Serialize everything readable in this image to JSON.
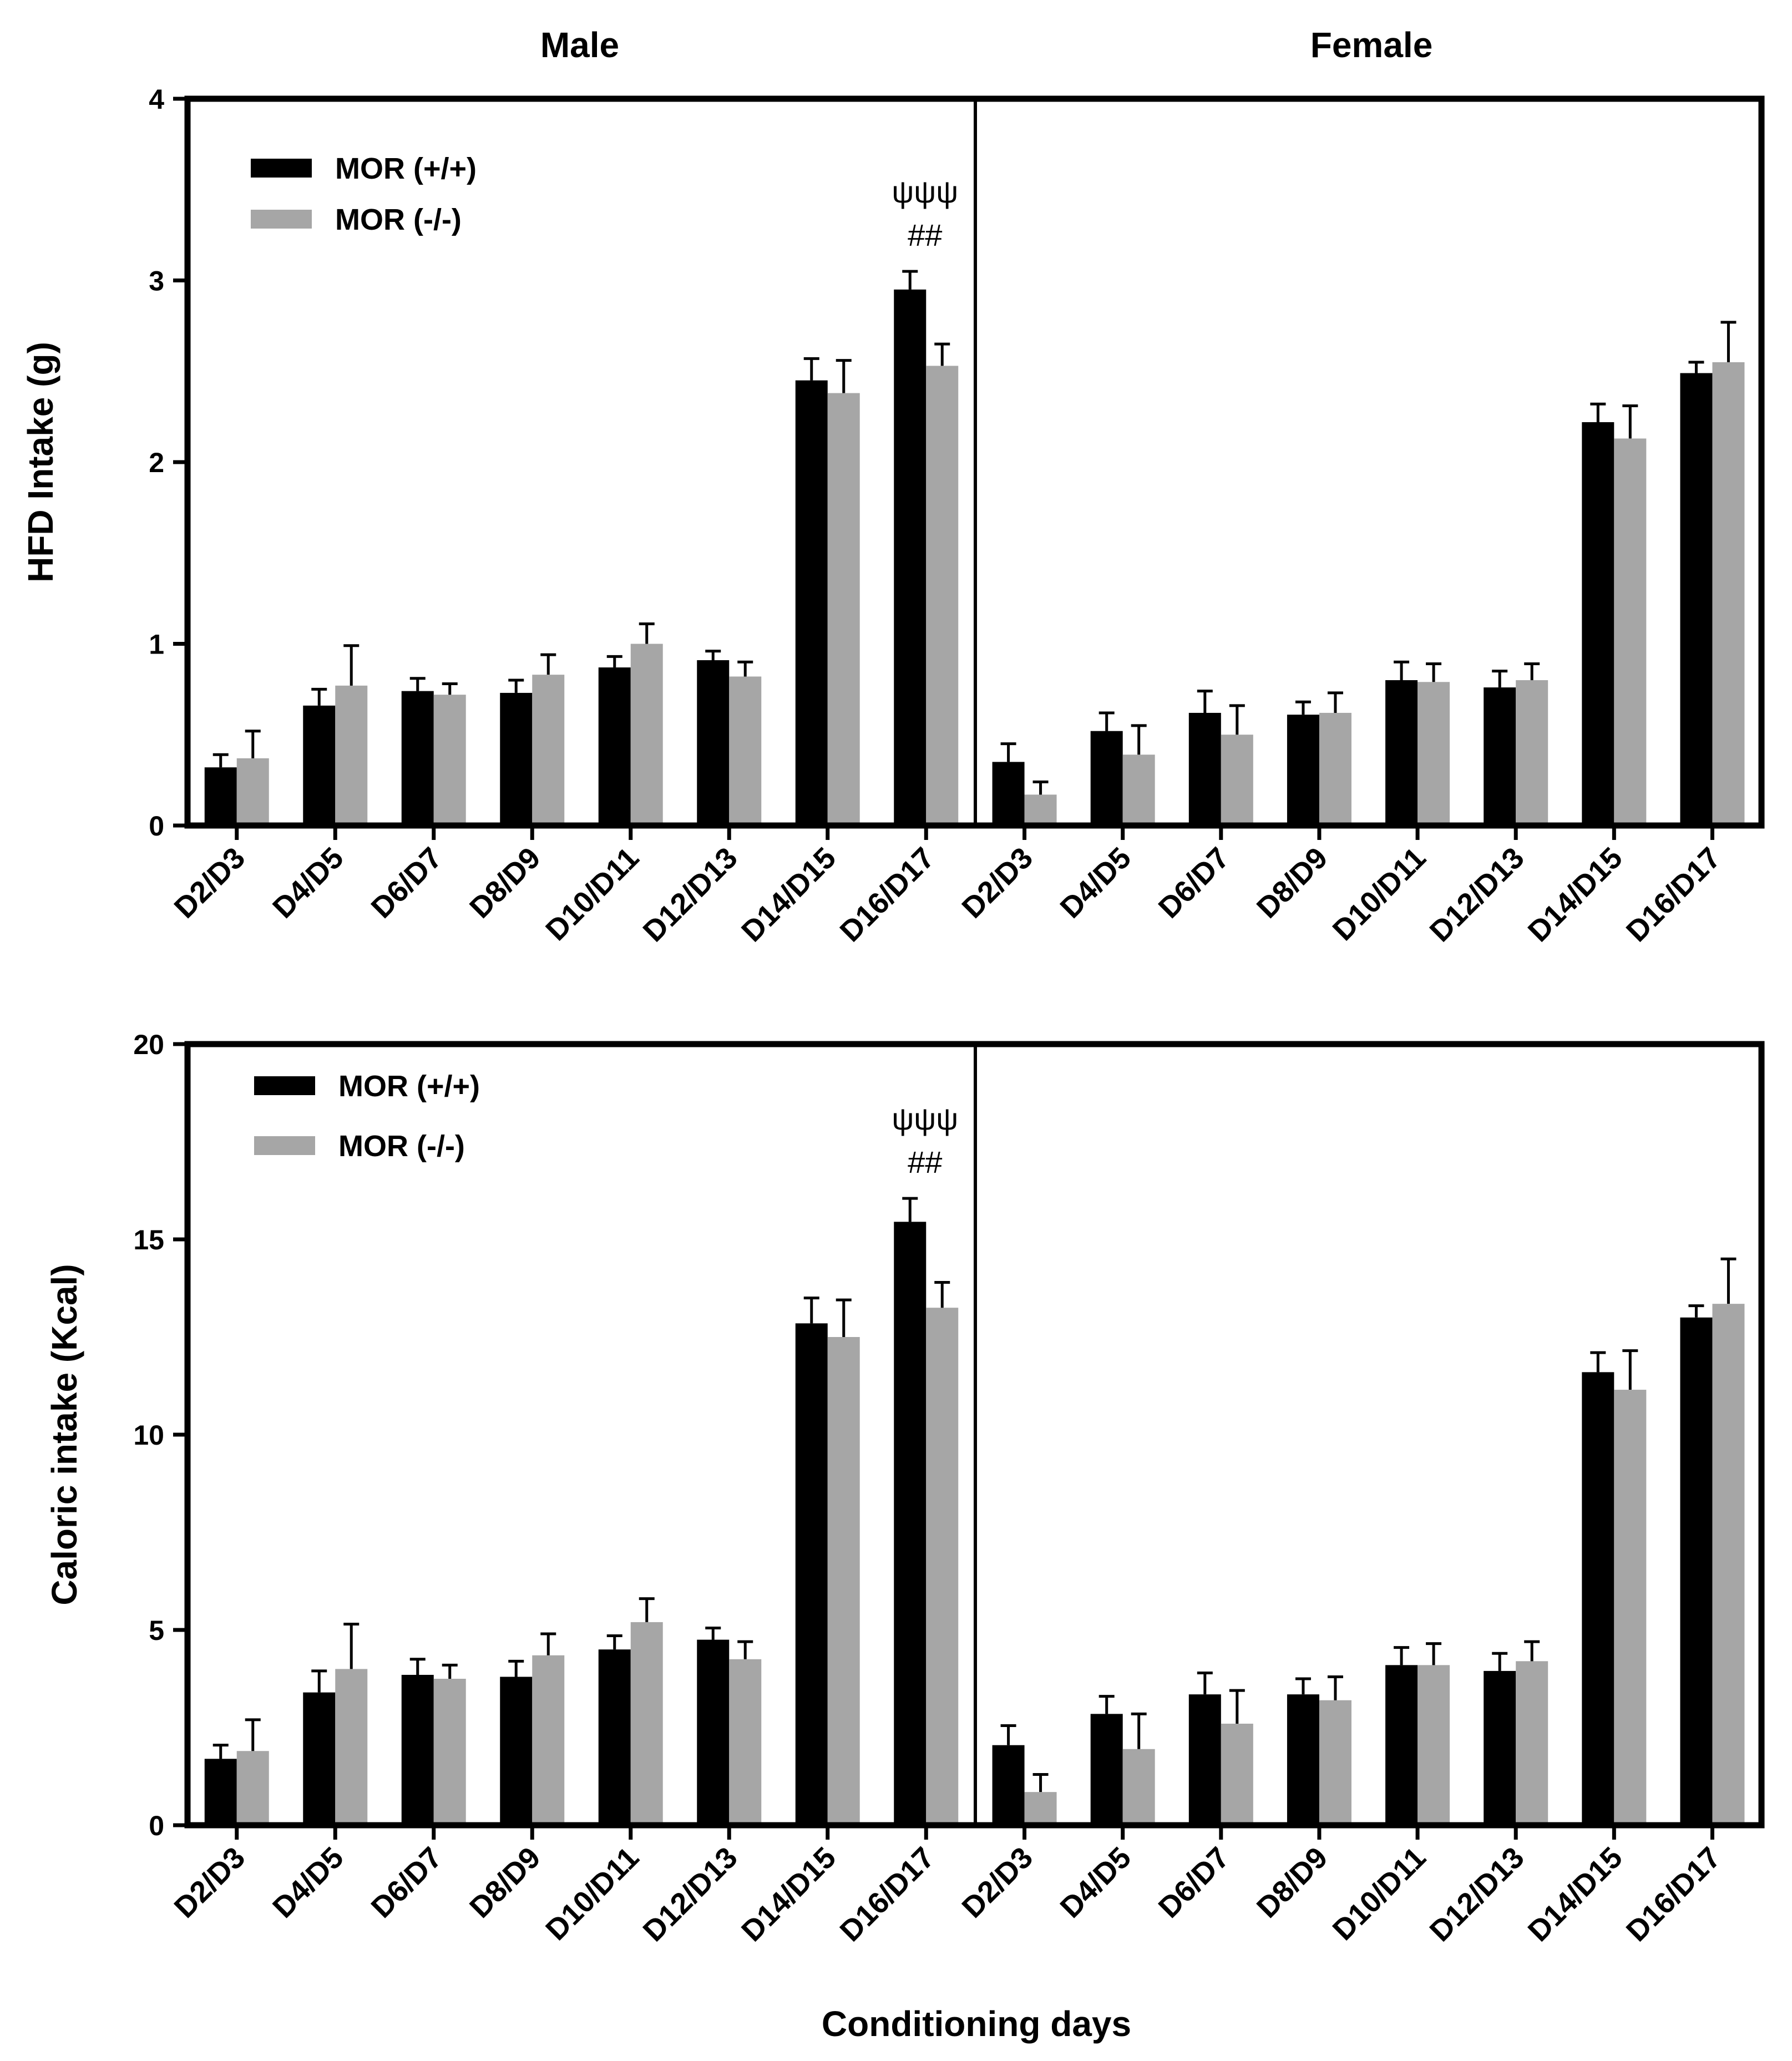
{
  "colors": {
    "mor_wt": "#000000",
    "mor_ko": "#a6a6a6",
    "axis": "#000000"
  },
  "figure": {
    "panel_headers": [
      "Male",
      "Female"
    ],
    "xlabel": "Conditioning days"
  },
  "chart_data": [
    {
      "type": "bar",
      "id": "hfd",
      "title": "",
      "xlabel": "Conditioning days",
      "ylabel": "HFD Intake (g)",
      "ylim": [
        0,
        4
      ],
      "yticks": [
        0,
        1,
        2,
        3,
        4
      ],
      "legend": [
        "MOR (+/+)",
        "MOR (-/-)"
      ],
      "legend_position": "top-left",
      "panels": [
        {
          "name": "Male",
          "categories": [
            "D2/D3",
            "D4/D5",
            "D6/D7",
            "D8/D9",
            "D10/D11",
            "D12/D13",
            "D14/D15",
            "D16/D17"
          ],
          "series": [
            {
              "name": "MOR (+/+)",
              "values": [
                0.32,
                0.66,
                0.74,
                0.73,
                0.87,
                0.91,
                2.45,
                2.95
              ],
              "errors": [
                0.07,
                0.09,
                0.07,
                0.07,
                0.06,
                0.05,
                0.12,
                0.1
              ]
            },
            {
              "name": "MOR (-/-)",
              "values": [
                0.37,
                0.77,
                0.72,
                0.83,
                1.0,
                0.82,
                2.38,
                2.53
              ],
              "errors": [
                0.15,
                0.22,
                0.06,
                0.11,
                0.11,
                0.08,
                0.18,
                0.12
              ]
            }
          ],
          "annotations": [
            {
              "category": "D16/D17",
              "lines": [
                "ψψψ",
                "##"
              ]
            }
          ]
        },
        {
          "name": "Female",
          "categories": [
            "D2/D3",
            "D4/D5",
            "D6/D7",
            "D8/D9",
            "D10/D11",
            "D12/D13",
            "D14/D15",
            "D16/D17"
          ],
          "series": [
            {
              "name": "MOR (+/+)",
              "values": [
                0.35,
                0.52,
                0.62,
                0.61,
                0.8,
                0.76,
                2.22,
                2.49
              ],
              "errors": [
                0.1,
                0.1,
                0.12,
                0.07,
                0.1,
                0.09,
                0.1,
                0.06
              ]
            },
            {
              "name": "MOR (-/-)",
              "values": [
                0.17,
                0.39,
                0.5,
                0.62,
                0.79,
                0.8,
                2.13,
                2.55
              ],
              "errors": [
                0.07,
                0.16,
                0.16,
                0.11,
                0.1,
                0.09,
                0.18,
                0.22
              ]
            }
          ],
          "annotations": []
        }
      ]
    },
    {
      "type": "bar",
      "id": "caloric",
      "title": "",
      "xlabel": "Conditioning days",
      "ylabel": "Caloric intake (Kcal)",
      "ylim": [
        0,
        20
      ],
      "yticks": [
        0,
        5,
        10,
        15,
        20
      ],
      "legend": [
        "MOR (+/+)",
        "MOR (-/-)"
      ],
      "legend_position": "top-left",
      "panels": [
        {
          "name": "Male",
          "categories": [
            "D2/D3",
            "D4/D5",
            "D6/D7",
            "D8/D9",
            "D10/D11",
            "D12/D13",
            "D14/D15",
            "D16/D17"
          ],
          "series": [
            {
              "name": "MOR (+/+)",
              "values": [
                1.7,
                3.4,
                3.85,
                3.8,
                4.5,
                4.75,
                12.85,
                15.45
              ],
              "errors": [
                0.35,
                0.55,
                0.4,
                0.4,
                0.35,
                0.3,
                0.65,
                0.6
              ]
            },
            {
              "name": "MOR (-/-)",
              "values": [
                1.9,
                4.0,
                3.75,
                4.35,
                5.2,
                4.25,
                12.5,
                13.25
              ],
              "errors": [
                0.8,
                1.15,
                0.35,
                0.55,
                0.6,
                0.45,
                0.95,
                0.65
              ]
            }
          ],
          "annotations": [
            {
              "category": "D16/D17",
              "lines": [
                "ψψψ",
                "##"
              ]
            }
          ]
        },
        {
          "name": "Female",
          "categories": [
            "D2/D3",
            "D4/D5",
            "D6/D7",
            "D8/D9",
            "D10/D11",
            "D12/D13",
            "D14/D15",
            "D16/D17"
          ],
          "series": [
            {
              "name": "MOR (+/+)",
              "values": [
                2.05,
                2.85,
                3.35,
                3.35,
                4.1,
                3.95,
                11.6,
                13.0
              ],
              "errors": [
                0.5,
                0.45,
                0.55,
                0.4,
                0.45,
                0.45,
                0.5,
                0.3
              ]
            },
            {
              "name": "MOR (-/-)",
              "values": [
                0.85,
                1.95,
                2.6,
                3.2,
                4.1,
                4.2,
                11.15,
                13.35
              ],
              "errors": [
                0.45,
                0.9,
                0.85,
                0.6,
                0.55,
                0.5,
                1.0,
                1.15
              ]
            }
          ],
          "annotations": []
        }
      ]
    }
  ]
}
